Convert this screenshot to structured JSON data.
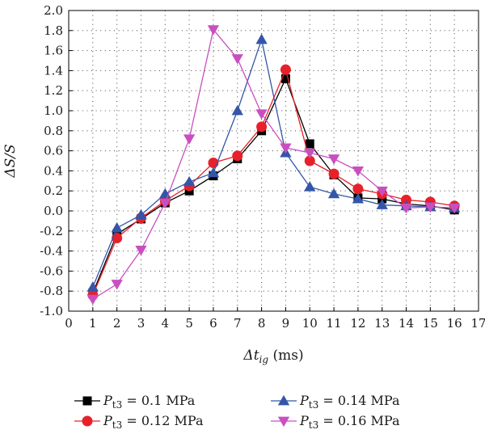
{
  "chart_data": {
    "type": "line",
    "xlabel": {
      "main": "Δt",
      "sub": "ig",
      "unit": " (ms)"
    },
    "ylabel": {
      "main": "ΔS/S"
    },
    "xlim": [
      0,
      17
    ],
    "ylim": [
      -1.0,
      2.0
    ],
    "x_ticks": [
      "0",
      "1",
      "2",
      "3",
      "4",
      "5",
      "6",
      "7",
      "8",
      "9",
      "10",
      "11",
      "12",
      "13",
      "14",
      "15",
      "16",
      "17"
    ],
    "y_ticks": [
      "-1.0",
      "-0.8",
      "-0.6",
      "-0.4",
      "-0.2",
      "0.0",
      "0.2",
      "0.4",
      "0.6",
      "0.8",
      "1.0",
      "1.2",
      "1.4",
      "1.6",
      "1.8",
      "2.0"
    ],
    "grid": "dotted",
    "legend_position": "bottom",
    "series": [
      {
        "name": {
          "main": "P",
          "sub": "t3",
          "rest": " = 0.1 MPa"
        },
        "color": "#000000",
        "marker": "square",
        "x": [
          1,
          2,
          3,
          4,
          5,
          6,
          7,
          8,
          9,
          10,
          11,
          12,
          13,
          14,
          15,
          16
        ],
        "y": [
          -0.82,
          -0.23,
          -0.08,
          0.08,
          0.2,
          0.35,
          0.52,
          0.8,
          1.32,
          0.67,
          0.36,
          0.13,
          0.12,
          0.07,
          0.05,
          0.01
        ]
      },
      {
        "name": {
          "main": "P",
          "sub": "t3",
          "rest": " = 0.12 MPa"
        },
        "color": "#e8202a",
        "marker": "circle",
        "x": [
          1,
          2,
          3,
          4,
          5,
          6,
          7,
          8,
          9,
          10,
          11,
          12,
          13,
          14,
          15,
          16
        ],
        "y": [
          -0.84,
          -0.27,
          -0.07,
          0.1,
          0.25,
          0.48,
          0.55,
          0.84,
          1.41,
          0.5,
          0.37,
          0.22,
          0.17,
          0.11,
          0.09,
          0.05
        ]
      },
      {
        "name": {
          "main": "P",
          "sub": "t3",
          "rest": " = 0.14 MPa"
        },
        "color": "#3356a8",
        "marker": "triangle-up",
        "x": [
          1,
          2,
          3,
          4,
          5,
          6,
          7,
          8,
          9,
          10,
          11,
          12,
          13,
          14,
          15,
          16
        ],
        "y": [
          -0.76,
          -0.17,
          -0.04,
          0.17,
          0.29,
          0.38,
          1.0,
          1.71,
          0.58,
          0.24,
          0.17,
          0.12,
          0.06,
          0.05,
          0.04,
          0.03
        ]
      },
      {
        "name": {
          "main": "P",
          "sub": "t3",
          "rest": " = 0.16 MPa"
        },
        "color": "#c94fc0",
        "marker": "triangle-down",
        "x": [
          1,
          2,
          3,
          4,
          5,
          6,
          7,
          8,
          9,
          10,
          11,
          12,
          13,
          14,
          15,
          16
        ],
        "y": [
          -0.88,
          -0.73,
          -0.39,
          0.08,
          0.72,
          1.81,
          1.52,
          0.97,
          0.63,
          0.58,
          0.52,
          0.4,
          0.2,
          0.03,
          0.04,
          0.03
        ]
      }
    ]
  }
}
